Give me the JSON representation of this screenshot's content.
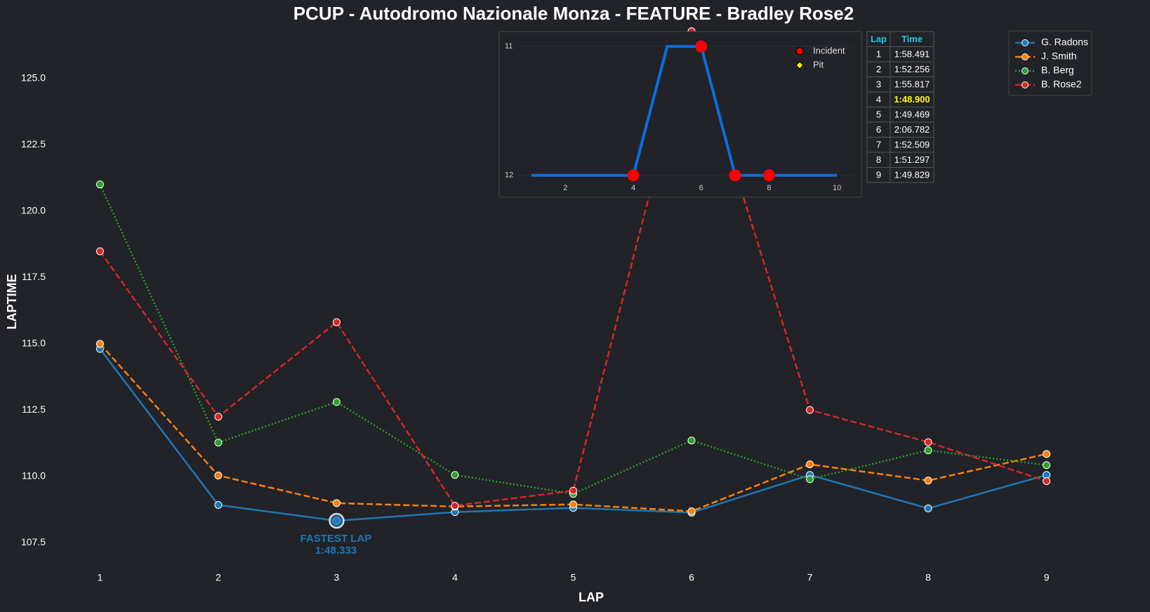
{
  "chart_data": [
    {
      "type": "line",
      "title": "PCUP - Autodromo Nazionale Monza - FEATURE - Bradley Rose2",
      "xlabel": "LAP",
      "ylabel": "LAPTIME",
      "x": [
        1,
        2,
        3,
        4,
        5,
        6,
        7,
        8,
        9
      ],
      "xlim": [
        0.6,
        9.4
      ],
      "xticks": [
        1,
        2,
        3,
        4,
        5,
        6,
        7,
        8,
        9
      ],
      "ylim": [
        106.8,
        126.9
      ],
      "yticks": [
        107.5,
        {
          "value": 110,
          "label": "110.0"
        },
        112.5,
        {
          "value": 115,
          "label": "115.0"
        },
        117.5,
        {
          "value": 120,
          "label": "120.0"
        },
        122.5,
        {
          "value": 125,
          "label": "125.0"
        }
      ],
      "legend": "upper right",
      "series": [
        {
          "name": "G. Radons",
          "color": "#1f77b4",
          "dash": "solid",
          "values": [
            114.81,
            108.93,
            108.333,
            108.66,
            108.82,
            108.64,
            110.06,
            108.8,
            110.06
          ]
        },
        {
          "name": "J. Smith",
          "color": "#ff7f0e",
          "dash": "dashed",
          "values": [
            115.0,
            110.04,
            109.0,
            108.87,
            108.95,
            108.69,
            110.46,
            109.85,
            110.85
          ]
        },
        {
          "name": "B. Berg",
          "color": "#2ca02c",
          "dash": "dotted",
          "values": [
            121.01,
            111.28,
            112.81,
            110.06,
            109.35,
            111.36,
            109.9,
            110.99,
            110.43
          ]
        },
        {
          "name": "B. Rose2",
          "color": "#d62728",
          "dash": "dashed",
          "values": [
            118.491,
            112.256,
            115.817,
            108.9,
            109.469,
            126.782,
            112.509,
            111.297,
            109.829
          ]
        }
      ],
      "annotation": {
        "text": [
          "FASTEST LAP",
          "1:48.333"
        ],
        "x": 3,
        "y": 108.333,
        "color": "#1f77b4"
      }
    },
    {
      "type": "line",
      "x": [
        1,
        2,
        3,
        4,
        5,
        6,
        7,
        8,
        9,
        10
      ],
      "xlim": [
        0.05,
        10.72
      ],
      "xticks": [
        2,
        4,
        6,
        8,
        10
      ],
      "ylim": [
        12.17,
        10.885
      ],
      "yticks": [
        11,
        12
      ],
      "series": [
        {
          "color": "#0b6fe0",
          "values": [
            12,
            12,
            12,
            12,
            11,
            11,
            12,
            12,
            12,
            12
          ]
        }
      ],
      "markers": [
        {
          "name": "Incident",
          "color": "#ff0000",
          "shape": "circle",
          "x": [
            4,
            6,
            7,
            8
          ],
          "y": [
            12,
            11,
            12,
            12
          ]
        },
        {
          "name": "Pit",
          "color": "#ffff00",
          "shape": "diamond",
          "x": [],
          "y": []
        }
      ]
    }
  ],
  "table": {
    "header": [
      "Lap",
      "Time"
    ],
    "highlight_row": 3,
    "rows": [
      [
        1,
        "1:58.491"
      ],
      [
        2,
        "1:52.256"
      ],
      [
        3,
        "1:55.817"
      ],
      [
        4,
        "1:48.900"
      ],
      [
        5,
        "1:49.469"
      ],
      [
        6,
        "2:06.782"
      ],
      [
        7,
        "1:52.509"
      ],
      [
        8,
        "1:51.297"
      ],
      [
        9,
        "1:49.829"
      ]
    ]
  }
}
